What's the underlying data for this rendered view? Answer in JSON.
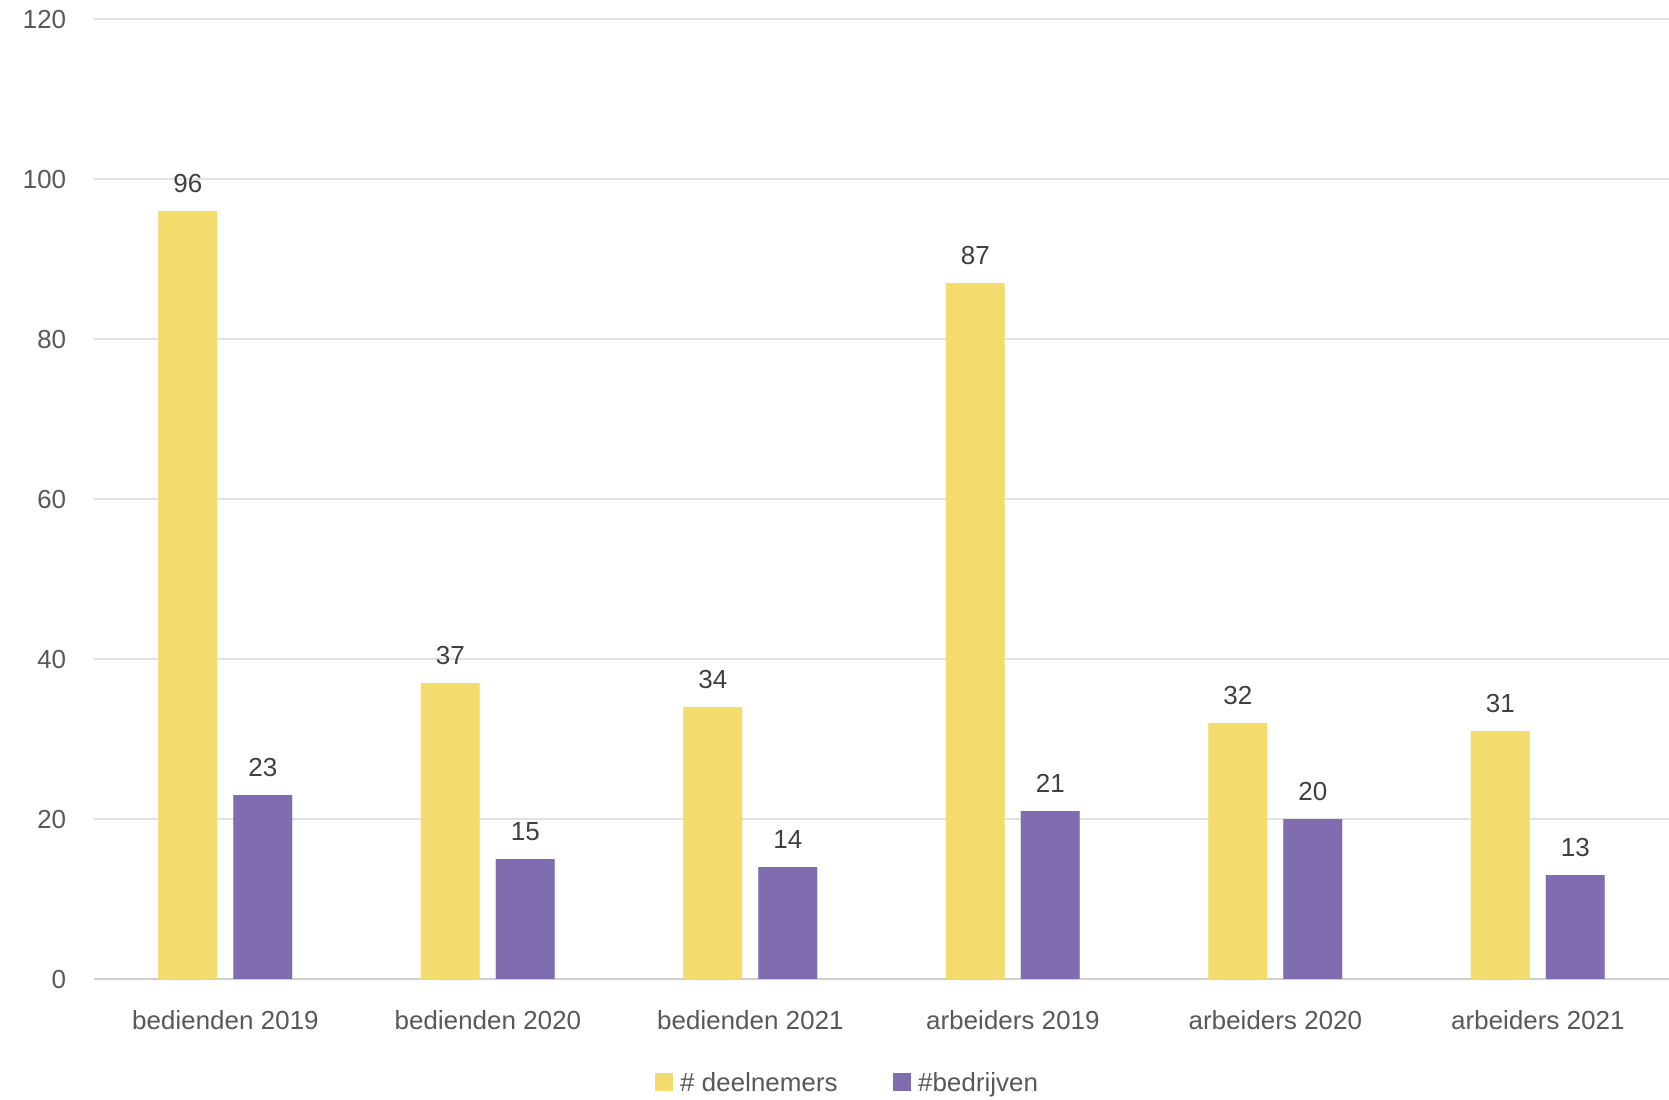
{
  "chart_data": {
    "type": "bar",
    "title": "",
    "xlabel": "",
    "ylabel": "",
    "categories": [
      "bedienden 2019",
      "bedienden 2020",
      "bedienden 2021",
      "arbeiders 2019",
      "arbeiders 2020",
      "arbeiders 2021"
    ],
    "series": [
      {
        "name": "# deelnemers",
        "color": "#F4DB6E",
        "values": [
          96,
          37,
          34,
          87,
          32,
          31
        ]
      },
      {
        "name": "#bedrijven",
        "color": "#806DAF",
        "values": [
          23,
          15,
          14,
          21,
          20,
          13
        ]
      }
    ],
    "ylim": [
      0,
      120
    ],
    "yticks": [
      0,
      20,
      40,
      60,
      80,
      100,
      120
    ],
    "grid": true,
    "legend": "bottom-center",
    "data_labels": true
  }
}
